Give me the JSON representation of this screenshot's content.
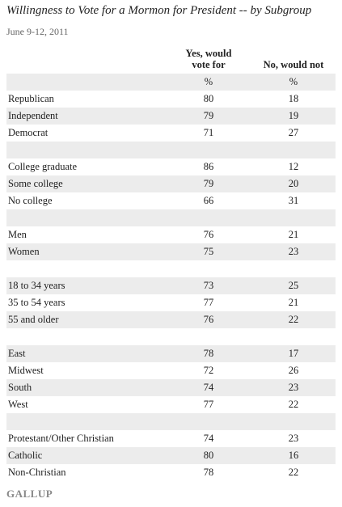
{
  "title": "Willingness to Vote for a Mormon for President -- by Subgroup",
  "date": "June 9-12, 2011",
  "table": {
    "columns": [
      "Yes, would vote for",
      "No, would not"
    ],
    "units": [
      "%",
      "%"
    ],
    "rows": [
      [
        "Republican",
        80,
        18
      ],
      [
        "Independent",
        79,
        19
      ],
      [
        "Democrat",
        71,
        27
      ],
      null,
      [
        "College graduate",
        86,
        12
      ],
      [
        "Some college",
        79,
        20
      ],
      [
        "No college",
        66,
        31
      ],
      null,
      [
        "Men",
        76,
        21
      ],
      [
        "Women",
        75,
        23
      ],
      null,
      [
        "18 to 34 years",
        73,
        25
      ],
      [
        "35 to 54 years",
        77,
        21
      ],
      [
        "55 and older",
        76,
        22
      ],
      null,
      [
        "East",
        78,
        17
      ],
      [
        "Midwest",
        72,
        26
      ],
      [
        "South",
        74,
        23
      ],
      [
        "West",
        77,
        22
      ],
      null,
      [
        "Protestant/Other Christian",
        74,
        23
      ],
      [
        "Catholic",
        80,
        16
      ],
      [
        "Non-Christian",
        78,
        22
      ]
    ]
  },
  "footer": {
    "logo": "GALLUP"
  }
}
